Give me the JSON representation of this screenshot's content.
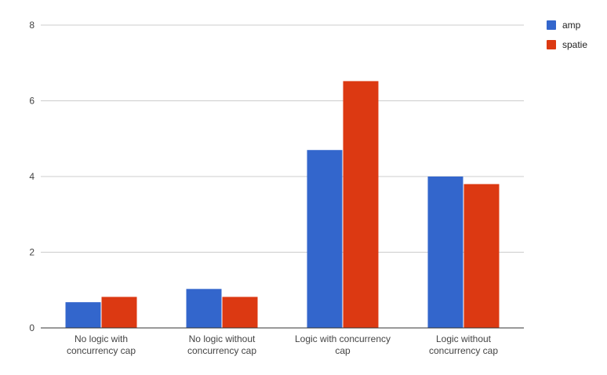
{
  "chart_data": {
    "type": "bar",
    "categories": [
      [
        "No logic with",
        "concurrency cap"
      ],
      [
        "No logic without",
        "concurrency cap"
      ],
      [
        "Logic with concurrency",
        "cap"
      ],
      [
        "Logic without",
        "concurrency cap"
      ]
    ],
    "series": [
      {
        "name": "amp",
        "color": "#3366cc",
        "values": [
          0.68,
          1.03,
          4.7,
          4.0
        ]
      },
      {
        "name": "spatie",
        "color": "#dc3912",
        "values": [
          0.82,
          0.82,
          6.52,
          3.8
        ]
      }
    ],
    "yticks": [
      "0",
      "2",
      "4",
      "6",
      "8"
    ],
    "ylim": [
      0,
      8
    ],
    "grid": true,
    "legend_position": "top-right",
    "colors": {
      "grid": "#cccccc",
      "baseline": "#333333",
      "text": "#444444"
    }
  }
}
